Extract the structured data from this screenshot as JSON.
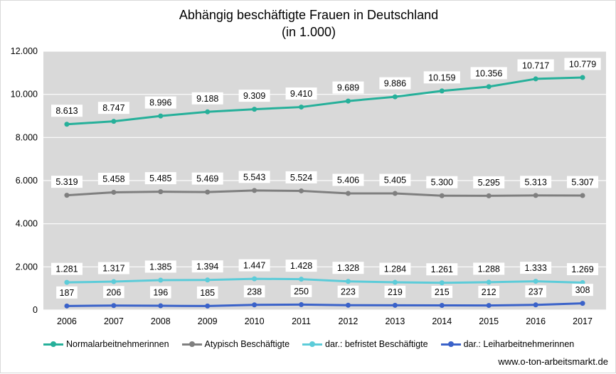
{
  "chart_data": {
    "type": "line",
    "title": "Abhängig beschäftigte Frauen in Deutschland",
    "subtitle": "(in 1.000)",
    "categories": [
      "2006",
      "2007",
      "2008",
      "2009",
      "2010",
      "2011",
      "2012",
      "2013",
      "2014",
      "2015",
      "2016",
      "2017"
    ],
    "ylim": [
      0,
      12000
    ],
    "yticks": [
      0,
      2000,
      4000,
      6000,
      8000,
      10000,
      12000
    ],
    "ytick_labels": [
      "0",
      "2.000",
      "4.000",
      "6.000",
      "8.000",
      "10.000",
      "12.000"
    ],
    "grid": true,
    "legend_position": "bottom",
    "series": [
      {
        "name": "Normalarbeitnehmerinnen",
        "color": "#26b09a",
        "values": [
          8613,
          8747,
          8996,
          9188,
          9309,
          9410,
          9689,
          9886,
          10159,
          10356,
          10717,
          10779
        ],
        "labels": [
          "8.613",
          "8.747",
          "8.996",
          "9.188",
          "9.309",
          "9.410",
          "9.689",
          "9.886",
          "10.159",
          "10.356",
          "10.717",
          "10.779"
        ]
      },
      {
        "name": "Atypisch Beschäftigte",
        "color": "#7f7f7f",
        "values": [
          5319,
          5458,
          5485,
          5469,
          5543,
          5524,
          5406,
          5405,
          5300,
          5295,
          5313,
          5307
        ],
        "labels": [
          "5.319",
          "5.458",
          "5.485",
          "5.469",
          "5.543",
          "5.524",
          "5.406",
          "5.405",
          "5.300",
          "5.295",
          "5.313",
          "5.307"
        ]
      },
      {
        "name": "dar.: befristet Beschäftigte",
        "color": "#5cccd9",
        "values": [
          1281,
          1317,
          1385,
          1394,
          1447,
          1428,
          1328,
          1284,
          1261,
          1288,
          1333,
          1269
        ],
        "labels": [
          "1.281",
          "1.317",
          "1.385",
          "1.394",
          "1.447",
          "1.428",
          "1.328",
          "1.284",
          "1.261",
          "1.288",
          "1.333",
          "1.269"
        ]
      },
      {
        "name": "dar.: Leiharbeitnehmerinnen",
        "color": "#3a62c9",
        "values": [
          187,
          206,
          196,
          185,
          238,
          250,
          223,
          219,
          215,
          212,
          237,
          308
        ],
        "labels": [
          "187",
          "206",
          "196",
          "185",
          "238",
          "250",
          "223",
          "219",
          "215",
          "212",
          "237",
          "308"
        ]
      }
    ]
  },
  "source": "www.o-ton-arbeitsmarkt.de"
}
